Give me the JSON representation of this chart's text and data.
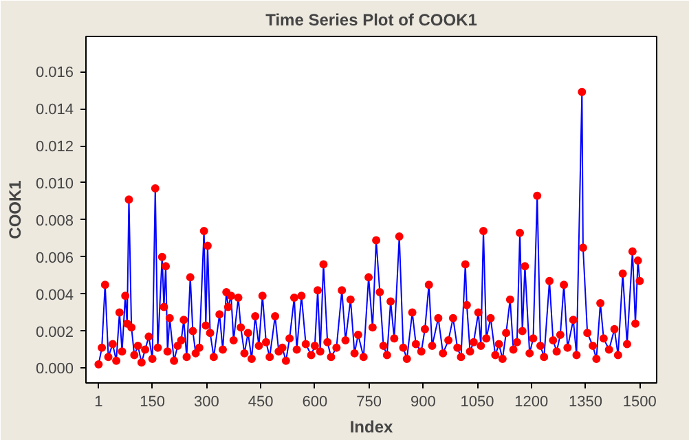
{
  "chart_data": {
    "type": "line",
    "title": "Time Series Plot of COOK1",
    "xlabel": "Index",
    "ylabel": "COOK1",
    "xlim": [
      -34,
      1547
    ],
    "ylim": [
      -0.0008,
      0.0179
    ],
    "xticks": [
      1,
      150,
      300,
      450,
      600,
      750,
      900,
      1050,
      1200,
      1350,
      1500
    ],
    "yticks": [
      {
        "value": 0,
        "label": "0.000"
      },
      {
        "value": 0.002,
        "label": "0.002"
      },
      {
        "value": 0.004,
        "label": "0.004"
      },
      {
        "value": 0.006,
        "label": "0.006"
      },
      {
        "value": 0.008,
        "label": "0.008"
      },
      {
        "value": 0.01,
        "label": "0.010"
      },
      {
        "value": 0.012,
        "label": "0.012"
      },
      {
        "value": 0.014,
        "label": "0.014"
      },
      {
        "value": 0.016,
        "label": "0.016"
      }
    ],
    "grid": false,
    "line_style": "solid",
    "x": [
      1,
      10,
      19,
      28,
      40,
      50,
      59,
      66,
      75,
      80,
      85,
      92,
      100,
      110,
      120,
      130,
      140,
      150,
      158,
      165,
      177,
      182,
      187,
      192,
      198,
      210,
      220,
      230,
      237,
      245,
      255,
      262,
      270,
      280,
      293,
      298,
      303,
      310,
      320,
      336,
      345,
      355,
      360,
      368,
      375,
      388,
      395,
      405,
      415,
      425,
      435,
      445,
      455,
      465,
      475,
      490,
      500,
      510,
      520,
      530,
      543,
      550,
      563,
      575,
      590,
      600,
      608,
      615,
      624,
      635,
      645,
      660,
      675,
      685,
      699,
      710,
      720,
      735,
      749,
      760,
      770,
      780,
      790,
      800,
      810,
      820,
      834,
      845,
      855,
      870,
      880,
      895,
      905,
      916,
      925,
      942,
      955,
      970,
      983,
      995,
      1005,
      1017,
      1021,
      1030,
      1040,
      1053,
      1060,
      1067,
      1075,
      1087,
      1100,
      1110,
      1120,
      1130,
      1141,
      1150,
      1160,
      1168,
      1175,
      1182,
      1195,
      1205,
      1216,
      1225,
      1235,
      1250,
      1260,
      1270,
      1280,
      1290,
      1300,
      1316,
      1325,
      1340,
      1343,
      1355,
      1370,
      1380,
      1391,
      1400,
      1415,
      1430,
      1440,
      1453,
      1465,
      1480,
      1488,
      1495,
      1500
    ],
    "series": [
      {
        "color": "#0000ff",
        "marker": "none",
        "values": [
          0.0002,
          0.0011,
          0.0045,
          0.0006,
          0.0013,
          0.0004,
          0.003,
          0.0009,
          0.0039,
          0.0024,
          0.0091,
          0.0022,
          0.0007,
          0.0012,
          0.0003,
          0.001,
          0.0017,
          0.0005,
          0.0097,
          0.0011,
          0.006,
          0.0033,
          0.0055,
          0.0009,
          0.0027,
          0.0004,
          0.0012,
          0.0015,
          0.0026,
          0.0006,
          0.0049,
          0.002,
          0.0008,
          0.0011,
          0.0074,
          0.0023,
          0.0066,
          0.0019,
          0.0006,
          0.0029,
          0.001,
          0.0041,
          0.0033,
          0.0039,
          0.0015,
          0.0038,
          0.0022,
          0.0008,
          0.0019,
          0.0005,
          0.0028,
          0.0012,
          0.0039,
          0.0014,
          0.0006,
          0.0028,
          0.0009,
          0.0011,
          0.0004,
          0.0016,
          0.0038,
          0.001,
          0.0039,
          0.0013,
          0.0007,
          0.0012,
          0.0042,
          0.0009,
          0.0056,
          0.0014,
          0.0006,
          0.0011,
          0.0042,
          0.0015,
          0.0037,
          0.0008,
          0.0018,
          0.0006,
          0.0049,
          0.0022,
          0.0069,
          0.0041,
          0.0012,
          0.0007,
          0.0036,
          0.0016,
          0.0071,
          0.0011,
          0.0005,
          0.003,
          0.0013,
          0.0009,
          0.0021,
          0.0045,
          0.0012,
          0.0027,
          0.0008,
          0.0015,
          0.0027,
          0.0011,
          0.0006,
          0.0056,
          0.0034,
          0.0009,
          0.0014,
          0.003,
          0.0012,
          0.0074,
          0.0016,
          0.0027,
          0.0007,
          0.0013,
          0.0005,
          0.0019,
          0.0037,
          0.001,
          0.0014,
          0.0073,
          0.002,
          0.0055,
          0.0008,
          0.0016,
          0.0093,
          0.0012,
          0.0006,
          0.0047,
          0.0015,
          0.0009,
          0.0018,
          0.0045,
          0.0011,
          0.0026,
          0.0007,
          0.0149,
          0.0065,
          0.0019,
          0.0012,
          0.0005,
          0.0035,
          0.0016,
          0.001,
          0.0021,
          0.0007,
          0.0051,
          0.0013,
          0.0063,
          0.0024,
          0.0058,
          0.0047
        ]
      },
      {
        "type": "scatter",
        "color": "#ff0000",
        "marker": "circle",
        "values": [
          0.0002,
          0.0011,
          0.0045,
          0.0006,
          0.0013,
          0.0004,
          0.003,
          0.0009,
          0.0039,
          0.0024,
          0.0091,
          0.0022,
          0.0007,
          0.0012,
          0.0003,
          0.001,
          0.0017,
          0.0005,
          0.0097,
          0.0011,
          0.006,
          0.0033,
          0.0055,
          0.0009,
          0.0027,
          0.0004,
          0.0012,
          0.0015,
          0.0026,
          0.0006,
          0.0049,
          0.002,
          0.0008,
          0.0011,
          0.0074,
          0.0023,
          0.0066,
          0.0019,
          0.0006,
          0.0029,
          0.001,
          0.0041,
          0.0033,
          0.0039,
          0.0015,
          0.0038,
          0.0022,
          0.0008,
          0.0019,
          0.0005,
          0.0028,
          0.0012,
          0.0039,
          0.0014,
          0.0006,
          0.0028,
          0.0009,
          0.0011,
          0.0004,
          0.0016,
          0.0038,
          0.001,
          0.0039,
          0.0013,
          0.0007,
          0.0012,
          0.0042,
          0.0009,
          0.0056,
          0.0014,
          0.0006,
          0.0011,
          0.0042,
          0.0015,
          0.0037,
          0.0008,
          0.0018,
          0.0006,
          0.0049,
          0.0022,
          0.0069,
          0.0041,
          0.0012,
          0.0007,
          0.0036,
          0.0016,
          0.0071,
          0.0011,
          0.0005,
          0.003,
          0.0013,
          0.0009,
          0.0021,
          0.0045,
          0.0012,
          0.0027,
          0.0008,
          0.0015,
          0.0027,
          0.0011,
          0.0006,
          0.0056,
          0.0034,
          0.0009,
          0.0014,
          0.003,
          0.0012,
          0.0074,
          0.0016,
          0.0027,
          0.0007,
          0.0013,
          0.0005,
          0.0019,
          0.0037,
          0.001,
          0.0014,
          0.0073,
          0.002,
          0.0055,
          0.0008,
          0.0016,
          0.0093,
          0.0012,
          0.0006,
          0.0047,
          0.0015,
          0.0009,
          0.0018,
          0.0045,
          0.0011,
          0.0026,
          0.0007,
          0.0149,
          0.0065,
          0.0019,
          0.0012,
          0.0005,
          0.0035,
          0.0016,
          0.001,
          0.0021,
          0.0007,
          0.0051,
          0.0013,
          0.0063,
          0.0024,
          0.0058,
          0.0047
        ]
      }
    ]
  }
}
